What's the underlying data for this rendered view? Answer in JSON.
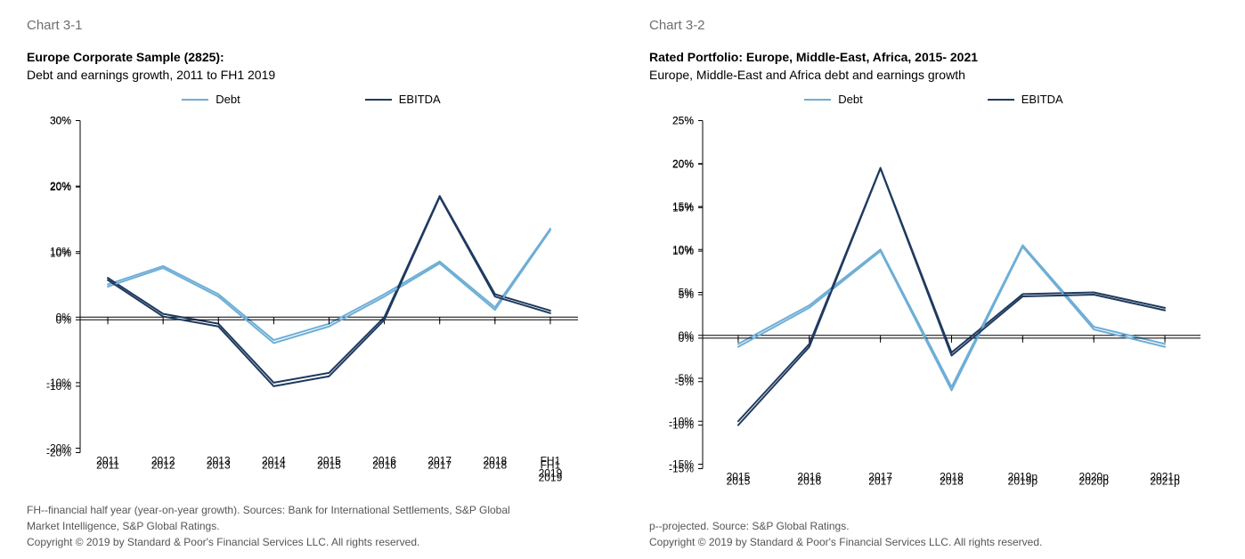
{
  "left": {
    "chart_label": "Chart 3-1",
    "title_bold": "Europe Corporate Sample (2825):",
    "subtitle": "Debt and earnings growth, 2011 to FH1 2019",
    "type": "line",
    "legend": {
      "debt": "Debt",
      "ebitda": "EBITDA"
    },
    "colors": {
      "debt": "#6eaed6",
      "ebitda": "#1f3a5f",
      "axis": "#000000",
      "tick_text": "#000000",
      "background": "#ffffff"
    },
    "line_width": {
      "debt": 2,
      "ebitda": 2
    },
    "font": {
      "tick_size": 12,
      "legend_size": 13
    },
    "x_categories": [
      "2011",
      "2012",
      "2013",
      "2014",
      "2015",
      "2016",
      "2017",
      "2018",
      "FH1\n2019"
    ],
    "series": {
      "debt": [
        5.0,
        7.8,
        3.5,
        -3.5,
        -1.0,
        3.5,
        8.5,
        1.5,
        13.5
      ],
      "ebitda": [
        6.0,
        0.5,
        -1.0,
        -10.0,
        -8.5,
        0.0,
        18.5,
        3.5,
        1.0
      ]
    },
    "y": {
      "min": -20,
      "max": 30,
      "step": 10,
      "suffix": "%"
    },
    "footnotes": [
      "FH--financial half year (year-on-year growth). Sources: Bank for International Settlements, S&P Global",
      "Market Intelligence, S&P Global Ratings.",
      "Copyright © 2019 by Standard & Poor's Financial Services LLC. All rights reserved."
    ]
  },
  "right": {
    "chart_label": "Chart 3-2",
    "title_bold": "Rated Portfolio: Europe, Middle-East, Africa, 2015- 2021",
    "subtitle": "Europe, Middle-East and Africa debt and earnings growth",
    "type": "line",
    "legend": {
      "debt": "Debt",
      "ebitda": "EBITDA"
    },
    "colors": {
      "debt": "#6eaed6",
      "ebitda": "#1f3a5f",
      "axis": "#000000",
      "tick_text": "#000000",
      "background": "#ffffff"
    },
    "line_width": {
      "debt": 2,
      "ebitda": 2
    },
    "font": {
      "tick_size": 12,
      "legend_size": 13
    },
    "x_categories": [
      "2015",
      "2016",
      "2017",
      "2018",
      "2019p",
      "2020p",
      "2021p"
    ],
    "series": {
      "debt": [
        -1.0,
        3.5,
        10.0,
        -6.0,
        10.5,
        1.0,
        -1.0
      ],
      "ebitda": [
        -10.0,
        -1.0,
        19.5,
        -2.0,
        4.8,
        5.0,
        3.2
      ]
    },
    "y": {
      "min": -15,
      "max": 25,
      "step": 5,
      "suffix": "%"
    },
    "footnotes": [
      "p--projected. Source: S&P Global Ratings.",
      "Copyright © 2019 by Standard & Poor's Financial Services LLC. All rights reserved."
    ]
  }
}
